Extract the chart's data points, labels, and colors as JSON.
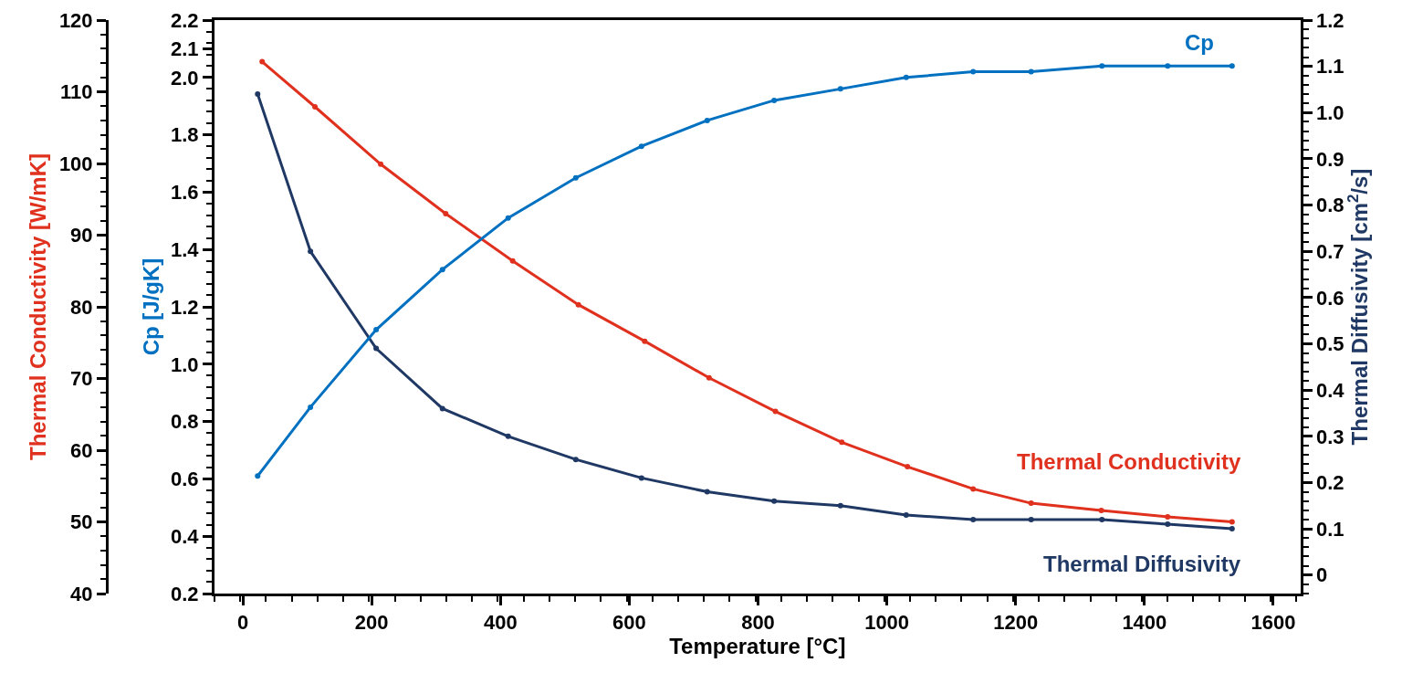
{
  "chart_data": {
    "type": "line",
    "xlabel": "Temperature [°C]",
    "ylabel": "Thermal Conductivity [W/mK]",
    "y2label": "Thermal Diffusivity [cm$^{2}$/s]",
    "y3label": "Cp [J/gK]",
    "marker": "circle",
    "line_style": "solid",
    "legend": false,
    "xlim": [
      -44,
      1642
    ],
    "xticks": [
      0,
      200,
      400,
      600,
      800,
      1000,
      1200,
      1400,
      1600
    ],
    "ylim": [
      40,
      120
    ],
    "yticks": [
      40,
      50,
      60,
      70,
      80,
      90,
      100,
      110,
      120
    ],
    "y2lim": [
      -0.04,
      1.2
    ],
    "y2ticks": [
      {
        "value": 0,
        "label": "0"
      },
      0.1,
      0.2,
      0.3,
      0.4,
      0.5,
      0.6,
      0.7,
      0.8,
      0.9,
      {
        "value": 1.0,
        "label": "1.0"
      },
      1.1,
      1.2
    ],
    "y3lim": [
      0.2,
      2.2
    ],
    "y3ticks": [
      0.2,
      0.4,
      0.6,
      0.8,
      {
        "value": 1.0,
        "label": "1.0"
      },
      1.2,
      1.4,
      1.6,
      1.8,
      {
        "value": 2.0,
        "label": "2.0"
      },
      2.1,
      2.2
    ],
    "series": [
      {
        "name": "Cp",
        "color": "#0070c0",
        "axis": "y3",
        "x": [
          23,
          105,
          207,
          310,
          412,
          517,
          619,
          721,
          825,
          928,
          1030,
          1134,
          1224,
          1334,
          1436,
          1536
        ],
        "values": [
          0.61,
          0.85,
          1.12,
          1.33,
          1.51,
          1.65,
          1.76,
          1.85,
          1.92,
          1.96,
          2.0,
          2.02,
          2.02,
          2.04,
          2.04,
          2.04
        ]
      },
      {
        "name": "Thermal Conductivity",
        "color": "#e0301e",
        "axis": "y",
        "x": [
          30,
          112,
          214,
          315,
          419,
          521,
          624,
          724,
          827,
          930,
          1032,
          1134,
          1224,
          1333,
          1436,
          1536
        ],
        "values": [
          114.2,
          107.9,
          99.9,
          93.0,
          86.4,
          80.3,
          75.2,
          70.1,
          65.4,
          61.1,
          57.7,
          54.6,
          52.6,
          51.6,
          50.7,
          50.0
        ]
      },
      {
        "name": "Thermal Diffusivity",
        "color": "#1f3864",
        "axis": "y2",
        "x": [
          23,
          105,
          207,
          310,
          412,
          517,
          619,
          721,
          825,
          928,
          1030,
          1134,
          1224,
          1334,
          1436,
          1536
        ],
        "values": [
          1.04,
          0.7,
          0.49,
          0.36,
          0.3,
          0.25,
          0.21,
          0.18,
          0.16,
          0.15,
          0.13,
          0.12,
          0.12,
          0.12,
          0.11,
          0.1
        ]
      }
    ]
  }
}
